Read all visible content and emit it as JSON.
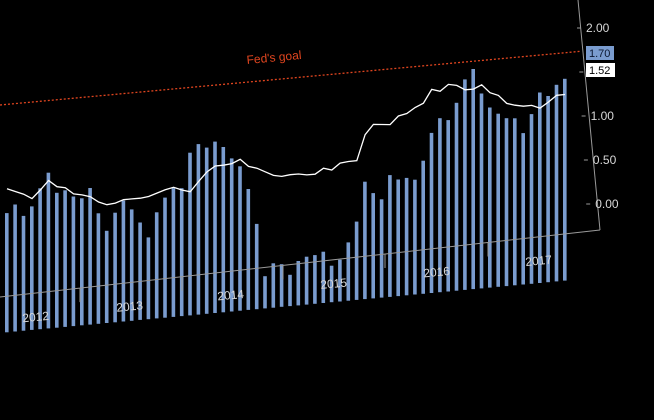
{
  "chart_data": {
    "type": "bar",
    "yticks": [
      "2.00",
      "1.50",
      "1.00",
      "0.50",
      "0.00"
    ],
    "ytick_values": [
      2.0,
      1.5,
      1.0,
      0.5,
      0.0
    ],
    "ylim": [
      -0.6,
      2.2
    ],
    "years": [
      "2012",
      "2013",
      "2014",
      "2015",
      "2016",
      "2017"
    ],
    "goal_label": "Fed's goal",
    "goal_value": 2.0,
    "last_values": {
      "bar": "1.70",
      "line": "1.52"
    },
    "colors": {
      "bars": "#7a9ccf",
      "line": "#ffffff",
      "goal": "#e0451f",
      "axis": "#9a9a9a",
      "bar_badge": "#7a9ccf",
      "line_badge": "#ffffff"
    },
    "series": [
      {
        "values": [
          0.75,
          0.84,
          0.7,
          0.8,
          1.0,
          1.17,
          0.93,
          0.95,
          0.87,
          0.84,
          0.95,
          0.65,
          0.44,
          0.64,
          0.77,
          0.66,
          0.5,
          0.32,
          0.6,
          0.76,
          0.86,
          0.85,
          1.25,
          1.34,
          1.29,
          1.35,
          1.28,
          1.14,
          1.04,
          0.77,
          0.36,
          -0.25,
          -0.11,
          -0.13,
          -0.26,
          -0.11,
          -0.07,
          -0.06,
          -0.03,
          -0.2,
          -0.14,
          0.05,
          0.28,
          0.73,
          0.59,
          0.51,
          0.78,
          0.72,
          0.73,
          0.7,
          0.91,
          1.22,
          1.38,
          1.35,
          1.54,
          1.8,
          1.91,
          1.62,
          1.45,
          1.37,
          1.31,
          1.3,
          1.12,
          1.33,
          1.57,
          1.52,
          1.64,
          1.7
        ]
      },
      {
        "values": [
          1.03,
          0.99,
          0.95,
          0.89,
          0.98,
          1.08,
          1.0,
          0.98,
          0.9,
          0.88,
          0.85,
          0.78,
          0.74,
          0.75,
          0.78,
          0.78,
          0.78,
          0.79,
          0.82,
          0.85,
          0.87,
          0.83,
          0.8,
          0.91,
          1.01,
          1.07,
          1.07,
          1.08,
          1.12,
          1.03,
          1.0,
          0.95,
          0.9,
          0.88,
          0.89,
          0.89,
          0.87,
          0.87,
          0.93,
          0.9,
          0.97,
          0.98,
          0.98,
          1.27,
          1.38,
          1.37,
          1.36,
          1.45,
          1.47,
          1.53,
          1.57,
          1.72,
          1.69,
          1.76,
          1.74,
          1.68,
          1.68,
          1.72,
          1.62,
          1.58,
          1.48,
          1.45,
          1.43,
          1.43,
          1.39,
          1.45,
          1.52,
          1.52
        ]
      }
    ]
  }
}
